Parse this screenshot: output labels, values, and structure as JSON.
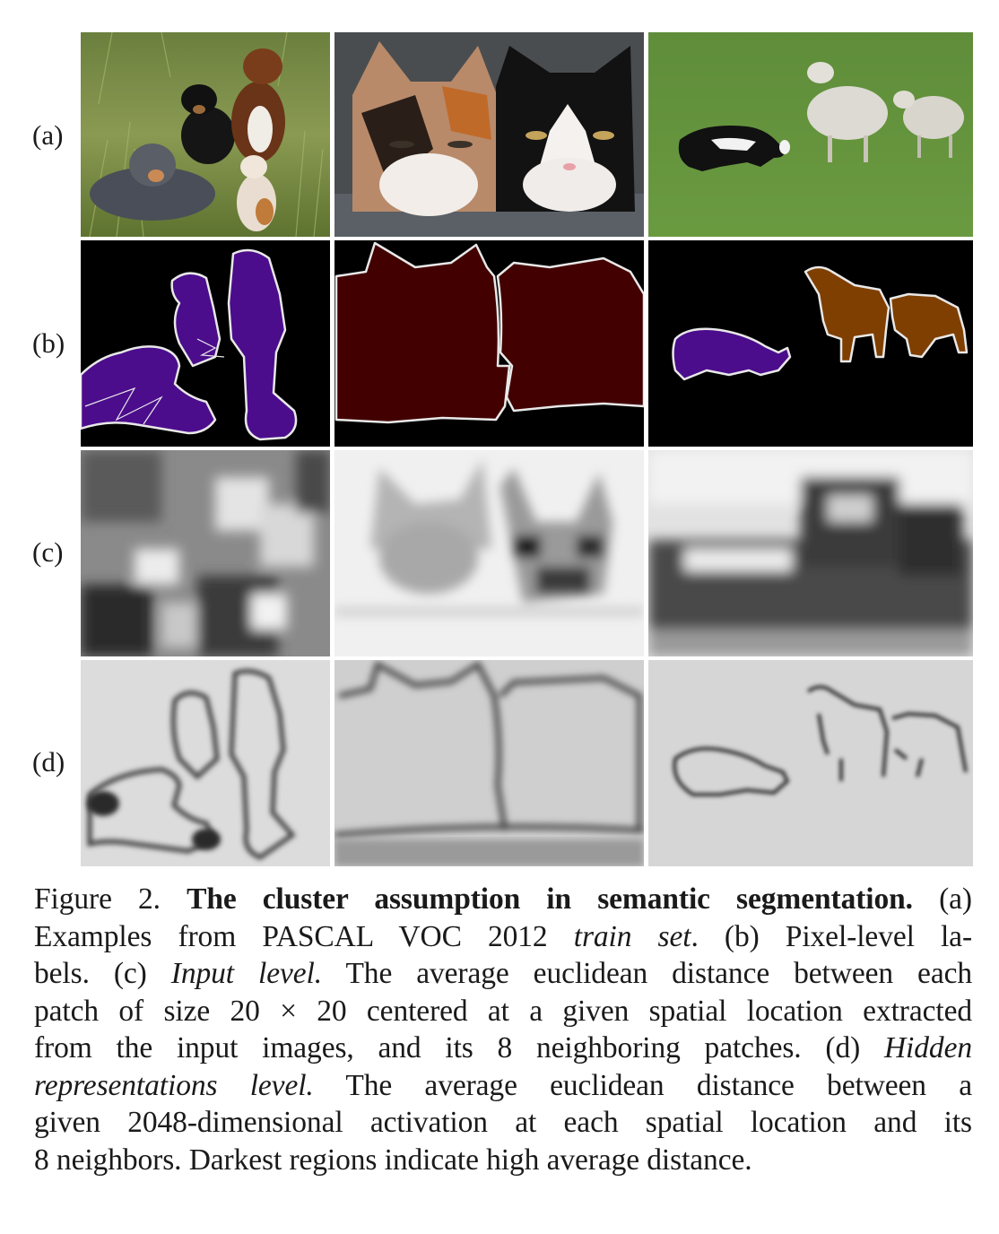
{
  "rows": {
    "a": "(a)",
    "b": "(b)",
    "c": "(c)",
    "d": "(d)"
  },
  "caption": {
    "label": "Figure 2.",
    "title": "The cluster assumption in semantic segmentation.",
    "a_ref": "(a)",
    "line2_prefix": "Examples from PASCAL VOC 2012",
    "train_set": "train set",
    "line2_dot": ".",
    "line2_suffix": "(b) Pixel-level la-",
    "line3_prefix": "bels. (c)",
    "input_level": "Input level.",
    "line3_suffix": "The average euclidean distance between each",
    "line4": "patch of size 20 × 20 centered at a given spatial location extracted",
    "line5_prefix": "from the input images, and its 8 neighboring patches. (d)",
    "hidden": "Hidden",
    "hidden_level": "representations level.",
    "line6_suffix": "The average euclidean distance between a",
    "line7": "given 2048-dimensional activation at each spatial location and its",
    "line8": "8 neighbors. Darkest regions indicate high average distance."
  },
  "colors": {
    "dog_class": "#4b0d8c",
    "cat_class": "#420000",
    "sheep_class": "#7f3f00",
    "background_class": "#000000",
    "boundary": "#e8e8e8"
  }
}
